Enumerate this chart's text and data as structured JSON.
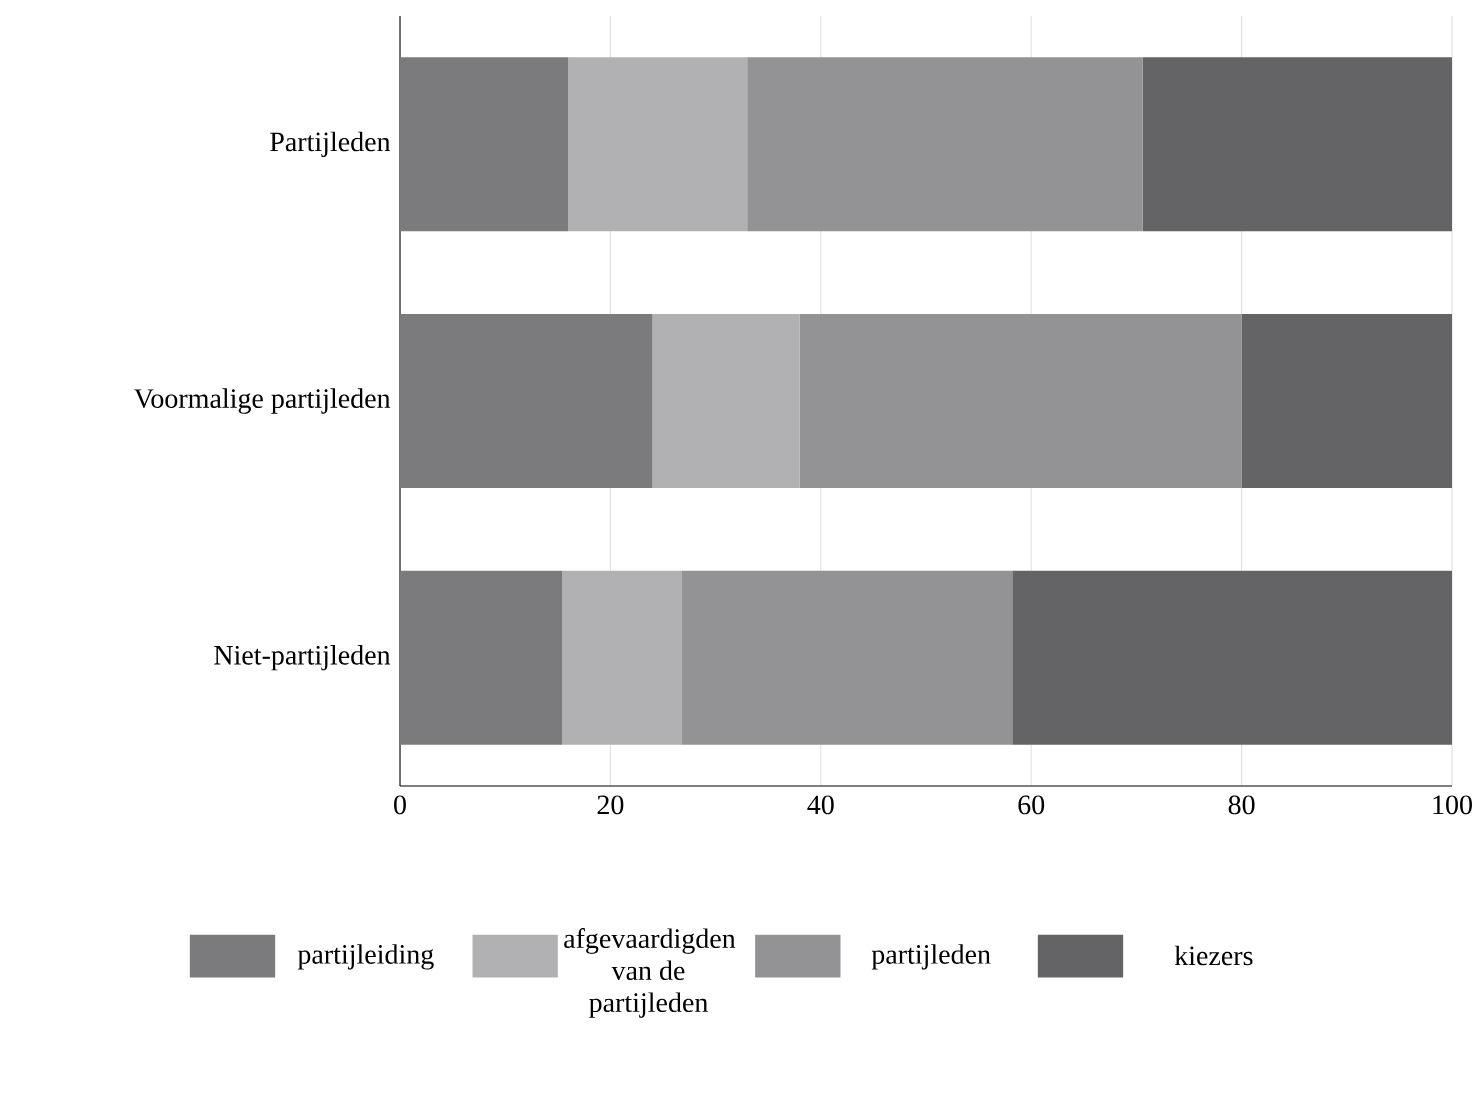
{
  "chart_data": {
    "type": "bar",
    "orientation": "horizontal",
    "stacked": true,
    "categories": [
      "Partijleden",
      "Voormalige partijleden",
      "Niet-partijleden"
    ],
    "series": [
      {
        "name": "partijleiding",
        "color": "#7b7b7d",
        "values": [
          16,
          24,
          15.4
        ]
      },
      {
        "name": "afgevaardigden van de partijleden",
        "color": "#b1b1b3",
        "values": [
          17,
          14,
          11.4
        ]
      },
      {
        "name": "partijleden",
        "color": "#939396",
        "values": [
          37.6,
          42,
          31.4
        ]
      },
      {
        "name": "kiezers",
        "color": "#646466",
        "values": [
          29.4,
          20,
          41.8
        ]
      }
    ],
    "xlim": [
      0,
      100
    ],
    "xticks": [
      0,
      20,
      40,
      60,
      80,
      100
    ],
    "grid": "x",
    "legend": "bottom"
  }
}
